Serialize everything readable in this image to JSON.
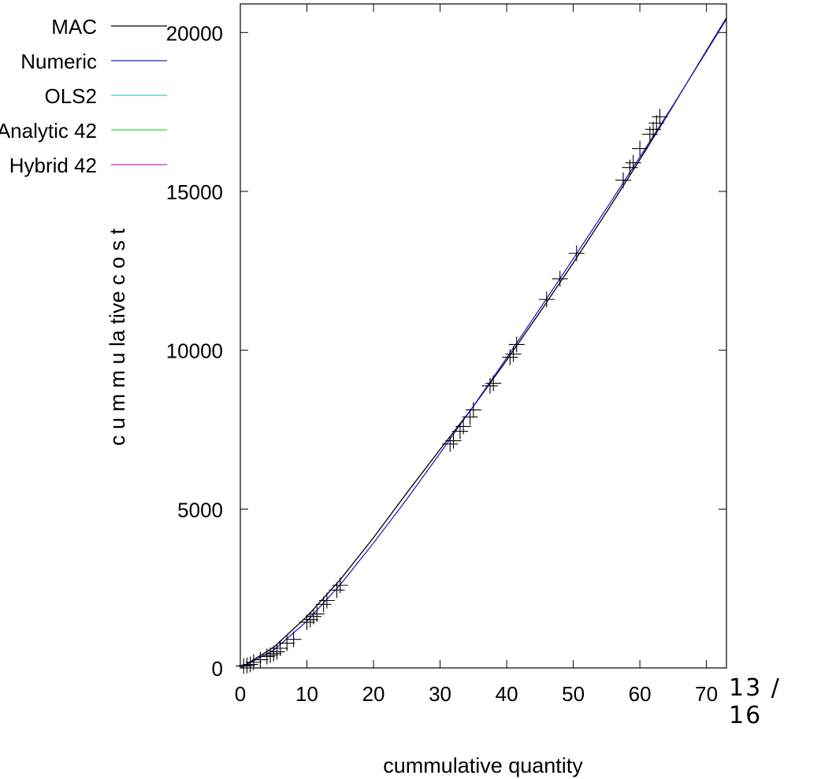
{
  "page_number": "13 / 16",
  "chart_data": {
    "type": "line",
    "title": "",
    "xlabel": "cummulative quantity",
    "ylabel": "c u m m u la tive  c o s t",
    "xlim": [
      0,
      73
    ],
    "ylim": [
      0,
      20900
    ],
    "x_ticks": [
      0,
      10,
      20,
      30,
      40,
      50,
      60,
      70
    ],
    "y_ticks": [
      0,
      5000,
      10000,
      15000,
      20000
    ],
    "grid": false,
    "legend_position": "top-left",
    "series": [
      {
        "name": "MAC",
        "color": "#000000",
        "x": [
          0,
          5,
          10,
          15,
          20,
          25,
          30,
          35,
          40,
          45,
          50,
          55,
          60,
          65,
          70,
          75
        ],
        "y": [
          0,
          650,
          1620,
          2780,
          4100,
          5510,
          6880,
          8230,
          9690,
          11200,
          12750,
          14350,
          16000,
          17700,
          19430,
          21150
        ]
      },
      {
        "name": "Numeric",
        "color": "#2222cc",
        "x": [
          0,
          5,
          10,
          15,
          20,
          25,
          30,
          35,
          40,
          45,
          50,
          55,
          60,
          65,
          70,
          75
        ],
        "y": [
          0,
          560,
          1470,
          2620,
          3930,
          5310,
          6760,
          8240,
          9760,
          11310,
          12880,
          14470,
          16080,
          17720,
          19400,
          21100
        ]
      },
      {
        "name": "OLS2",
        "color": "#33cccc",
        "x": [],
        "y": []
      },
      {
        "name": "Analytic 42",
        "color": "#33dd33",
        "x": [],
        "y": []
      },
      {
        "name": "Hybrid 42",
        "color": "#cc22cc",
        "x": [],
        "y": []
      }
    ],
    "observations": {
      "name": "observed",
      "marker": "plus",
      "x": [
        0.5,
        1,
        1.5,
        2,
        3,
        4,
        4.5,
        5,
        5.5,
        6,
        7,
        8,
        10,
        10.5,
        11,
        11.5,
        12.5,
        13,
        14.5,
        15,
        31.5,
        32,
        33,
        33.5,
        34.5,
        35,
        37.5,
        38,
        40.5,
        41,
        41.5,
        46,
        48,
        50.5,
        57.5,
        58.5,
        59,
        60,
        61.5,
        62,
        62.5,
        63
      ],
      "y": [
        60,
        80,
        110,
        180,
        260,
        360,
        400,
        450,
        510,
        620,
        780,
        900,
        1440,
        1520,
        1620,
        1700,
        2000,
        2120,
        2450,
        2600,
        7050,
        7150,
        7450,
        7600,
        7900,
        8120,
        8880,
        8960,
        9780,
        9880,
        10180,
        11600,
        12250,
        13050,
        15350,
        15750,
        15900,
        16350,
        16800,
        16950,
        17150,
        17350
      ]
    }
  }
}
